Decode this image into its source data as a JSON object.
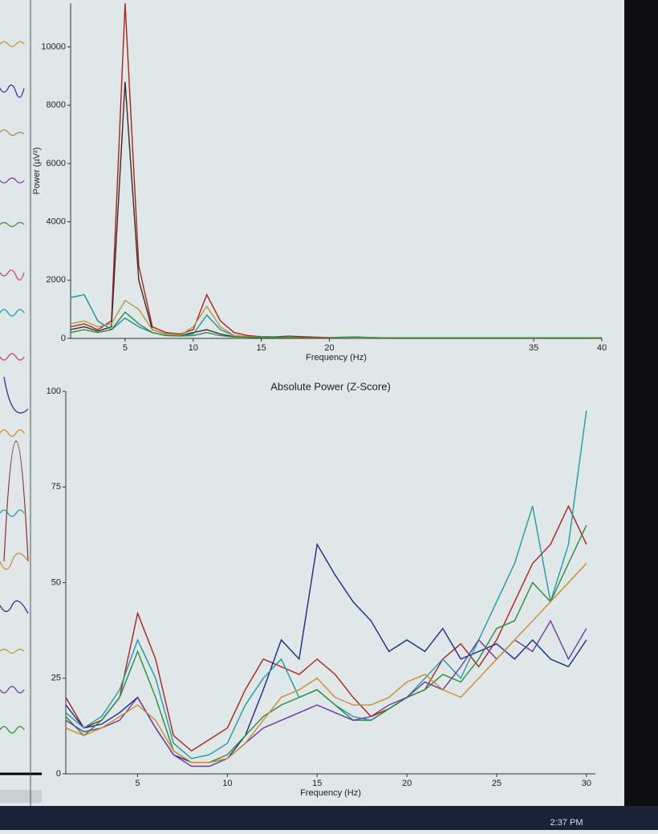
{
  "chart_data": [
    {
      "type": "line",
      "xlabel": "Frequency (Hz)",
      "ylabel": "Power (µV²)",
      "x": [
        1,
        2,
        3,
        4,
        5,
        6,
        7,
        8,
        9,
        10,
        11,
        12,
        13,
        14,
        15,
        16,
        17,
        18,
        19,
        20,
        21,
        22,
        23,
        24,
        25,
        26,
        27,
        28,
        29,
        30,
        31,
        32,
        33,
        34,
        35,
        36,
        37,
        38,
        39,
        40
      ],
      "xlim": [
        1,
        40
      ],
      "xticks": [
        5,
        10,
        15,
        20,
        35,
        40
      ],
      "ylim": [
        0,
        11500
      ],
      "yticks": [
        0,
        2000,
        4000,
        6000,
        8000,
        10000
      ],
      "series": [
        {
          "color": "#b0201c",
          "values": [
            400,
            500,
            300,
            600,
            11500,
            2500,
            400,
            200,
            150,
            300,
            1500,
            600,
            200,
            100,
            60,
            50,
            80,
            60,
            40,
            30,
            30,
            40,
            30,
            20,
            20,
            20,
            20,
            20,
            20,
            20,
            20,
            20,
            20,
            20,
            20,
            20,
            20,
            20,
            20,
            20
          ]
        },
        {
          "color": "#3a2a2a",
          "values": [
            300,
            400,
            250,
            400,
            8800,
            2000,
            300,
            150,
            100,
            200,
            300,
            150,
            60,
            50,
            40,
            40,
            30,
            30,
            20,
            20,
            20,
            20,
            20,
            20,
            20,
            20,
            20,
            20,
            20,
            20,
            20,
            20,
            20,
            20,
            20,
            20,
            20,
            20,
            20,
            20
          ]
        },
        {
          "color": "#1f8fa0",
          "values": [
            1400,
            1500,
            600,
            300,
            700,
            400,
            200,
            100,
            100,
            150,
            800,
            300,
            100,
            60,
            40,
            30,
            30,
            20,
            20,
            20,
            40,
            50,
            30,
            20,
            20,
            20,
            20,
            20,
            20,
            20,
            20,
            20,
            20,
            20,
            20,
            20,
            20,
            20,
            20,
            20
          ]
        },
        {
          "color": "#b59a3a",
          "values": [
            500,
            600,
            400,
            500,
            1300,
            1000,
            300,
            150,
            100,
            400,
            1100,
            400,
            100,
            60,
            40,
            30,
            30,
            20,
            20,
            20,
            20,
            20,
            20,
            20,
            20,
            20,
            20,
            20,
            20,
            20,
            20,
            20,
            20,
            20,
            20,
            20,
            20,
            20,
            20,
            20
          ]
        },
        {
          "color": "#2f8a3a",
          "values": [
            200,
            300,
            200,
            300,
            900,
            500,
            200,
            100,
            80,
            100,
            200,
            100,
            50,
            40,
            30,
            30,
            20,
            20,
            20,
            20,
            30,
            40,
            30,
            20,
            20,
            20,
            20,
            20,
            20,
            20,
            20,
            20,
            20,
            20,
            20,
            20,
            20,
            20,
            20,
            20
          ]
        }
      ]
    },
    {
      "type": "line",
      "title": "Absolute Power (Z-Score)",
      "xlabel": "Frequency (Hz)",
      "x": [
        1,
        2,
        3,
        4,
        5,
        6,
        7,
        8,
        9,
        10,
        11,
        12,
        13,
        14,
        15,
        16,
        17,
        18,
        19,
        20,
        21,
        22,
        23,
        24,
        25,
        26,
        27,
        28,
        29,
        30
      ],
      "xlim": [
        1,
        30.5
      ],
      "xticks": [
        5,
        10,
        15,
        20,
        25,
        30
      ],
      "ylim": [
        0,
        100
      ],
      "yticks": [
        0,
        25,
        50,
        75,
        100
      ],
      "series": [
        {
          "color": "#b0201c",
          "values": [
            20,
            12,
            14,
            20,
            42,
            30,
            10,
            6,
            9,
            12,
            22,
            30,
            28,
            26,
            30,
            26,
            20,
            15,
            17,
            20,
            22,
            30,
            34,
            28,
            35,
            45,
            55,
            60,
            70,
            60
          ]
        },
        {
          "color": "#1c2a8c",
          "values": [
            18,
            12,
            13,
            16,
            20,
            12,
            5,
            3,
            3,
            4,
            10,
            22,
            35,
            30,
            60,
            52,
            45,
            40,
            32,
            35,
            32,
            38,
            30,
            32,
            34,
            30,
            35,
            30,
            28,
            35
          ]
        },
        {
          "color": "#1f9aa8",
          "values": [
            16,
            12,
            15,
            22,
            35,
            25,
            8,
            4,
            5,
            8,
            18,
            25,
            30,
            20,
            22,
            18,
            15,
            14,
            17,
            20,
            25,
            30,
            25,
            35,
            45,
            55,
            70,
            45,
            60,
            95
          ]
        },
        {
          "color": "#2f8a3a",
          "values": [
            15,
            10,
            14,
            20,
            32,
            20,
            6,
            3,
            3,
            5,
            10,
            15,
            18,
            20,
            22,
            18,
            14,
            14,
            17,
            20,
            22,
            26,
            24,
            30,
            38,
            40,
            50,
            45,
            55,
            65
          ]
        },
        {
          "color": "#6a3aa0",
          "values": [
            14,
            11,
            12,
            14,
            20,
            12,
            5,
            2,
            2,
            4,
            8,
            12,
            14,
            16,
            18,
            16,
            14,
            15,
            18,
            20,
            24,
            22,
            28,
            35,
            30,
            35,
            32,
            40,
            30,
            38
          ]
        },
        {
          "color": "#d08a2a",
          "values": [
            12,
            10,
            12,
            15,
            18,
            14,
            6,
            3,
            3,
            4,
            8,
            14,
            20,
            22,
            25,
            20,
            18,
            18,
            20,
            24,
            26,
            22,
            20,
            25,
            30,
            35,
            40,
            45,
            50,
            55
          ]
        }
      ]
    }
  ],
  "taskbar": {
    "time": "2:37 PM"
  }
}
